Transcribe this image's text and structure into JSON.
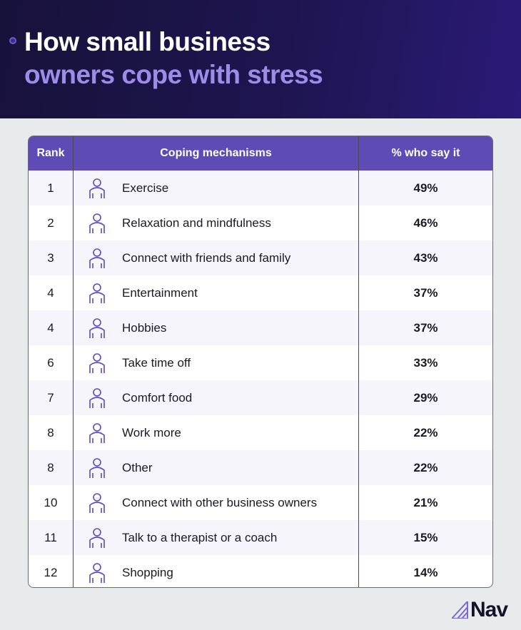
{
  "header": {
    "title_line1": "How small business",
    "title_line2": "owners cope with stress"
  },
  "table": {
    "columns": [
      "Rank",
      "Coping mechanisms",
      "% who say it"
    ],
    "rows": [
      {
        "rank": "1",
        "icon": "exercise-icon",
        "label": "Exercise",
        "pct": "49%"
      },
      {
        "rank": "2",
        "icon": "meditation-icon",
        "label": "Relaxation and mindfulness",
        "pct": "46%"
      },
      {
        "rank": "3",
        "icon": "people-icon",
        "label": "Connect with friends and family",
        "pct": "43%"
      },
      {
        "rank": "4",
        "icon": "popcorn-icon",
        "label": "Entertainment",
        "pct": "37%"
      },
      {
        "rank": "4",
        "icon": "camera-icon",
        "label": "Hobbies",
        "pct": "37%"
      },
      {
        "rank": "6",
        "icon": "lounger-icon",
        "label": "Take time off",
        "pct": "33%"
      },
      {
        "rank": "7",
        "icon": "taco-icon",
        "label": "Comfort food",
        "pct": "29%"
      },
      {
        "rank": "8",
        "icon": "briefcase-icon",
        "label": "Work more",
        "pct": "22%"
      },
      {
        "rank": "8",
        "icon": "head-storm-icon",
        "label": "Other",
        "pct": "22%"
      },
      {
        "rank": "10",
        "icon": "network-icon",
        "label": "Connect with other business owners",
        "pct": "21%"
      },
      {
        "rank": "11",
        "icon": "therapy-icon",
        "label": "Talk to a therapist or a coach",
        "pct": "15%"
      },
      {
        "rank": "12",
        "icon": "shopping-bag-icon",
        "label": "Shopping",
        "pct": "14%"
      }
    ]
  },
  "brand": {
    "name": "Nav",
    "accent": "#5f4bb6"
  }
}
